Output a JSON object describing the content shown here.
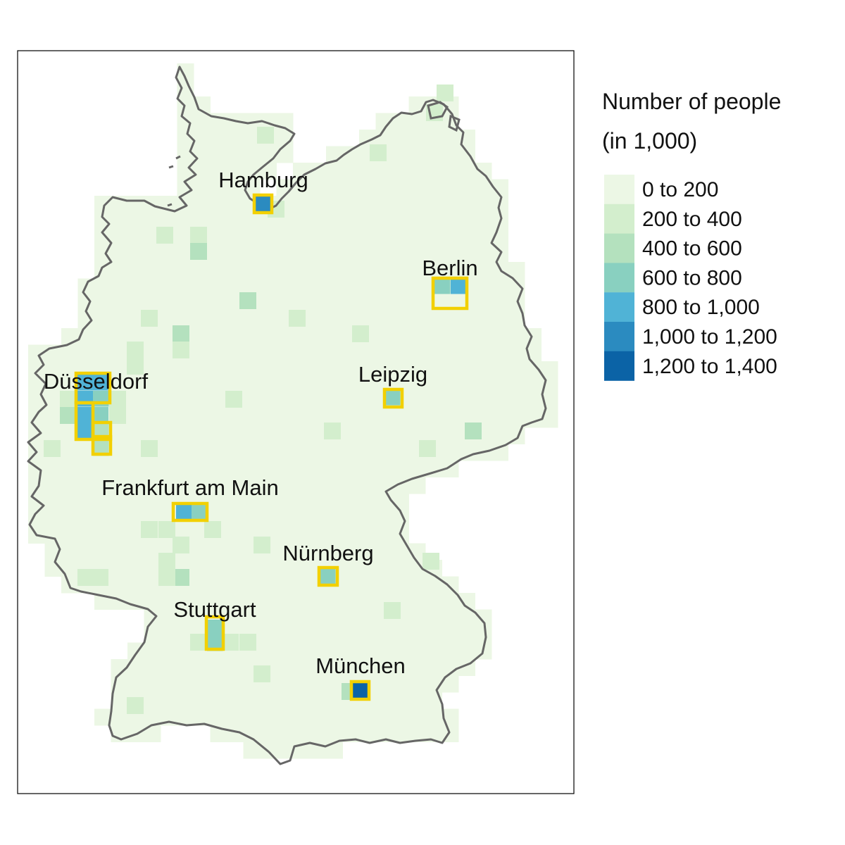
{
  "legend": {
    "title_line1": "Number of people",
    "title_line2": "(in 1,000)",
    "classes": [
      {
        "label": "0 to 200",
        "color": "#ecf7e5"
      },
      {
        "label": "200 to 400",
        "color": "#d3eecd"
      },
      {
        "label": "400 to 600",
        "color": "#b4e1be"
      },
      {
        "label": "600 to 800",
        "color": "#89d0c0"
      },
      {
        "label": "800 to 1,000",
        "color": "#50b3d6"
      },
      {
        "label": "1,000 to 1,200",
        "color": "#2b8bc0"
      },
      {
        "label": "1,200 to 1,400",
        "color": "#0b63a6"
      }
    ]
  },
  "cities": [
    {
      "name": "Hamburg"
    },
    {
      "name": "Berlin"
    },
    {
      "name": "Düsseldorf"
    },
    {
      "name": "Leipzig"
    },
    {
      "name": "Frankfurt am Main"
    },
    {
      "name": "Nürnberg"
    },
    {
      "name": "Stuttgart"
    },
    {
      "name": "München"
    }
  ],
  "colors": {
    "highlight_outline": "#f2d000",
    "border": "#666666",
    "frame": "#000000"
  }
}
